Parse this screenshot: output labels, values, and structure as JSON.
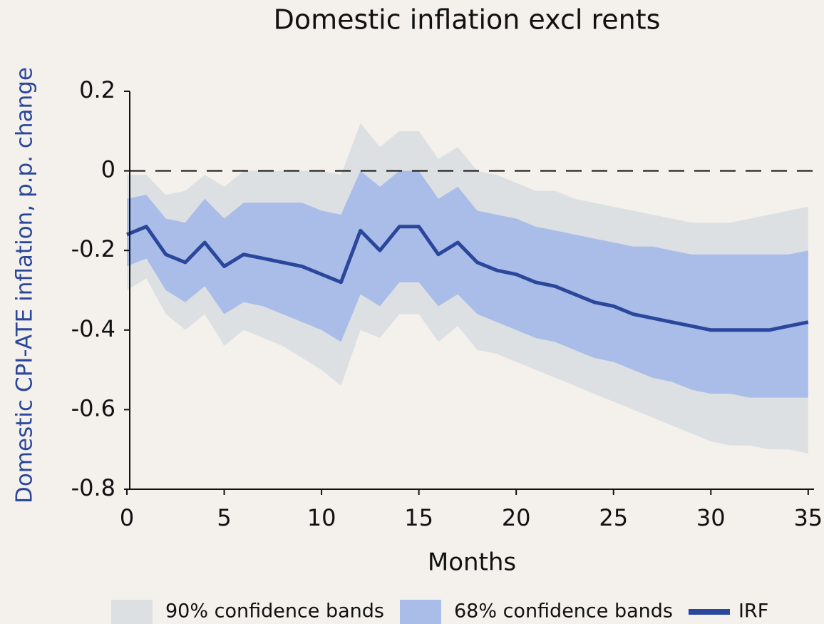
{
  "chart_data": {
    "type": "line",
    "title": "Domestic inflation excl rents",
    "xlabel": "Months",
    "ylabel": "Domestic CPI-ATE inflation, p.p. change",
    "x": [
      0,
      1,
      2,
      3,
      4,
      5,
      6,
      7,
      8,
      9,
      10,
      11,
      12,
      13,
      14,
      15,
      16,
      17,
      18,
      19,
      20,
      21,
      22,
      23,
      24,
      25,
      26,
      27,
      28,
      29,
      30,
      31,
      32,
      33,
      34,
      35
    ],
    "bands": [
      {
        "name": "90% confidence bands",
        "color": "#dde0e3",
        "upper": [
          -0.01,
          -0.01,
          -0.06,
          -0.05,
          -0.01,
          -0.04,
          0,
          0,
          0,
          0,
          0,
          -0.01,
          0.12,
          0.06,
          0.1,
          0.1,
          0.03,
          0.06,
          0,
          -0.01,
          -0.03,
          -0.05,
          -0.05,
          -0.07,
          -0.08,
          -0.09,
          -0.1,
          -0.11,
          -0.12,
          -0.13,
          -0.13,
          -0.13,
          -0.12,
          -0.11,
          -0.1,
          -0.09
        ],
        "lower": [
          -0.3,
          -0.27,
          -0.36,
          -0.4,
          -0.36,
          -0.44,
          -0.4,
          -0.42,
          -0.44,
          -0.47,
          -0.5,
          -0.54,
          -0.4,
          -0.42,
          -0.36,
          -0.36,
          -0.43,
          -0.39,
          -0.45,
          -0.46,
          -0.48,
          -0.5,
          -0.52,
          -0.54,
          -0.56,
          -0.58,
          -0.6,
          -0.62,
          -0.64,
          -0.66,
          -0.68,
          -0.69,
          -0.69,
          -0.7,
          -0.7,
          -0.71
        ]
      },
      {
        "name": "68% confidence bands",
        "color": "#a9bde8",
        "upper": [
          -0.07,
          -0.06,
          -0.12,
          -0.13,
          -0.07,
          -0.12,
          -0.08,
          -0.08,
          -0.08,
          -0.08,
          -0.1,
          -0.11,
          0,
          -0.04,
          0,
          0,
          -0.07,
          -0.04,
          -0.1,
          -0.11,
          -0.12,
          -0.14,
          -0.15,
          -0.16,
          -0.17,
          -0.18,
          -0.19,
          -0.19,
          -0.2,
          -0.21,
          -0.21,
          -0.21,
          -0.21,
          -0.21,
          -0.21,
          -0.2
        ],
        "lower": [
          -0.24,
          -0.22,
          -0.3,
          -0.33,
          -0.29,
          -0.36,
          -0.33,
          -0.34,
          -0.36,
          -0.38,
          -0.4,
          -0.43,
          -0.31,
          -0.34,
          -0.28,
          -0.28,
          -0.34,
          -0.31,
          -0.36,
          -0.38,
          -0.4,
          -0.42,
          -0.43,
          -0.45,
          -0.47,
          -0.48,
          -0.5,
          -0.52,
          -0.53,
          -0.55,
          -0.56,
          -0.56,
          -0.57,
          -0.57,
          -0.57,
          -0.57
        ]
      }
    ],
    "series": [
      {
        "name": "IRF",
        "color": "#2b479b",
        "values": [
          -0.16,
          -0.14,
          -0.21,
          -0.23,
          -0.18,
          -0.24,
          -0.21,
          -0.22,
          -0.23,
          -0.24,
          -0.26,
          -0.28,
          -0.15,
          -0.2,
          -0.14,
          -0.14,
          -0.21,
          -0.18,
          -0.23,
          -0.25,
          -0.26,
          -0.28,
          -0.29,
          -0.31,
          -0.33,
          -0.34,
          -0.36,
          -0.37,
          -0.38,
          -0.39,
          -0.4,
          -0.4,
          -0.4,
          -0.4,
          -0.39,
          -0.38
        ]
      }
    ],
    "hline": 0,
    "xlim": [
      0,
      35.3
    ],
    "xticks": [
      0,
      5,
      10,
      15,
      20,
      25,
      30,
      35
    ],
    "ylim": [
      -0.8,
      0.2
    ],
    "yticks": [
      0.2,
      0,
      -0.2,
      -0.4,
      -0.6,
      -0.8
    ],
    "legend": "bottom-right"
  }
}
